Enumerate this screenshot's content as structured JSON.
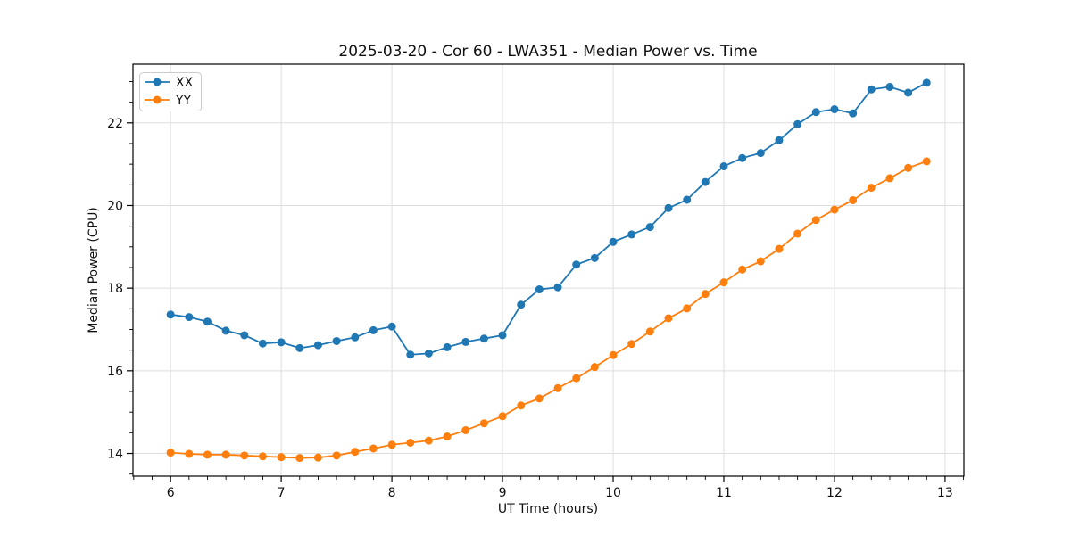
{
  "chart_data": {
    "type": "line",
    "title": "2025-03-20 - Cor 60 - LWA351 - Median Power vs. Time",
    "xlabel": "UT Time (hours)",
    "ylabel": "Median Power (CPU)",
    "xlim": [
      5.66,
      13.17
    ],
    "ylim": [
      13.45,
      23.42
    ],
    "x_ticks": [
      6,
      7,
      8,
      9,
      10,
      11,
      12,
      13
    ],
    "y_ticks": [
      14,
      16,
      18,
      20,
      22
    ],
    "x_minor_interval": 0.1667,
    "y_minor_interval": 0.5,
    "grid": "major-only",
    "grid_color": "#dedede",
    "legend_position": "upper left",
    "x": [
      6.0,
      6.167,
      6.333,
      6.5,
      6.667,
      6.833,
      7.0,
      7.167,
      7.333,
      7.5,
      7.667,
      7.833,
      8.0,
      8.167,
      8.333,
      8.5,
      8.667,
      8.833,
      9.0,
      9.167,
      9.333,
      9.5,
      9.667,
      9.833,
      10.0,
      10.167,
      10.333,
      10.5,
      10.667,
      10.833,
      11.0,
      11.167,
      11.333,
      11.5,
      11.667,
      11.833,
      12.0,
      12.167,
      12.333,
      12.5,
      12.667,
      12.833
    ],
    "series": [
      {
        "name": "XX",
        "color": "#1f77b4",
        "marker": "circle",
        "values": [
          17.36,
          17.3,
          17.19,
          16.97,
          16.86,
          16.66,
          16.69,
          16.55,
          16.62,
          16.72,
          16.81,
          16.98,
          17.07,
          16.39,
          16.42,
          16.57,
          16.7,
          16.78,
          16.86,
          17.6,
          17.97,
          18.02,
          18.57,
          18.73,
          19.12,
          19.3,
          19.48,
          19.94,
          20.14,
          20.57,
          20.95,
          21.15,
          21.27,
          21.58,
          21.97,
          22.26,
          22.33,
          22.23,
          22.81,
          22.87,
          22.73,
          22.97
        ]
      },
      {
        "name": "YY",
        "color": "#ff7f0e",
        "marker": "circle",
        "values": [
          14.02,
          13.99,
          13.97,
          13.97,
          13.95,
          13.93,
          13.91,
          13.89,
          13.9,
          13.95,
          14.04,
          14.12,
          14.21,
          14.26,
          14.31,
          14.41,
          14.56,
          14.73,
          14.9,
          15.16,
          15.33,
          15.58,
          15.82,
          16.09,
          16.38,
          16.65,
          16.95,
          17.27,
          17.51,
          17.86,
          18.14,
          18.45,
          18.65,
          18.95,
          19.32,
          19.65,
          19.9,
          20.13,
          20.43,
          20.66,
          20.91,
          21.07
        ]
      }
    ]
  }
}
